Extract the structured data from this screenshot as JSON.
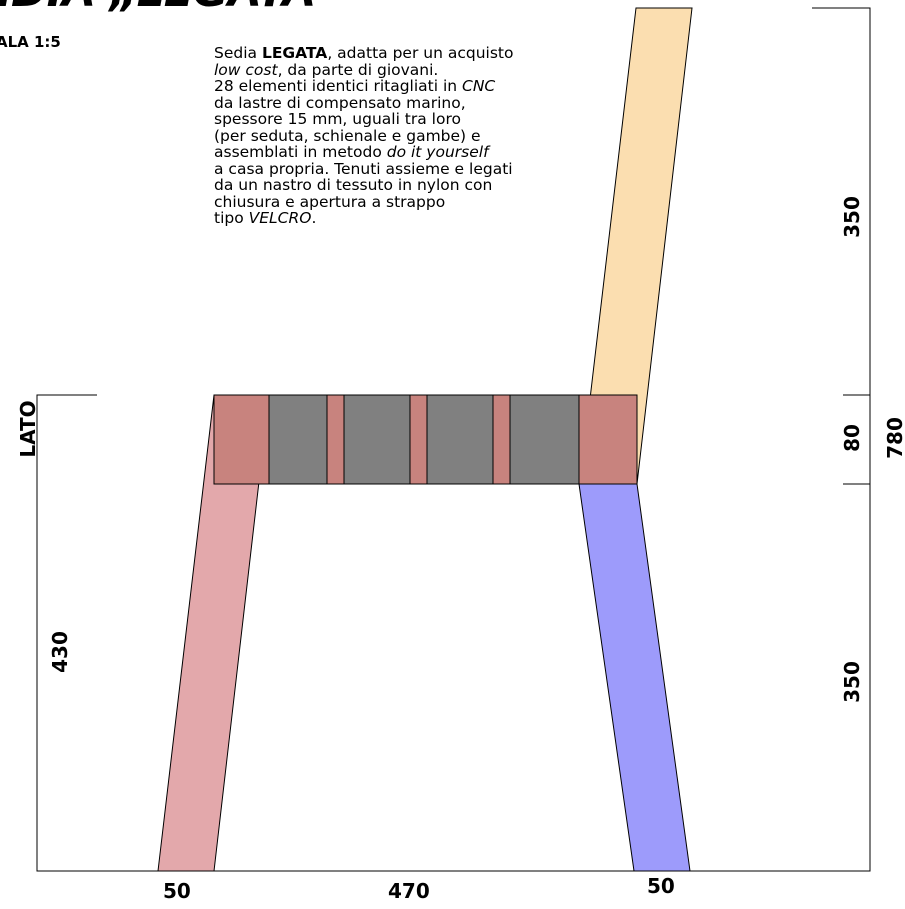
{
  "title": "EDIA „LEGATA",
  "scale": "ALA 1:5",
  "view_label": "LATO",
  "description": {
    "lines": [
      [
        {
          "t": "Sedia "
        },
        {
          "t": "LEGATA",
          "b": true
        },
        {
          "t": ", adatta per un acquisto"
        }
      ],
      [
        {
          "t": "low cost",
          "i": true
        },
        {
          "t": ", da parte di giovani."
        }
      ],
      [
        {
          "t": "28 elementi identici ritagliati in "
        },
        {
          "t": "CNC",
          "i": true
        }
      ],
      [
        {
          "t": "da lastre di compensato marino,"
        }
      ],
      [
        {
          "t": "spessore 15 mm, uguali tra loro"
        }
      ],
      [
        {
          "t": "(per seduta, schienale e gambe) e"
        }
      ],
      [
        {
          "t": "assemblati in metodo "
        },
        {
          "t": "do it yourself",
          "i": true
        }
      ],
      [
        {
          "t": "a casa propria. Tenuti assieme e legati"
        }
      ],
      [
        {
          "t": "da un nastro di tessuto in nylon con"
        }
      ],
      [
        {
          "t": "chiusura e apertura a strappo"
        }
      ],
      [
        {
          "t": "tipo "
        },
        {
          "t": "VELCRO",
          "i": true
        },
        {
          "t": "."
        }
      ]
    ]
  },
  "dimensions": {
    "leg_height": "430",
    "back_height": "350",
    "seat_thickness": "80",
    "total_height": "780",
    "front_leg_height": "350",
    "left_leg_width": "50",
    "seat_width": "470",
    "right_leg_width": "50"
  },
  "colors": {
    "left_leg": "#e3a8ab",
    "right_leg": "#9d9bfb",
    "backrest": "#fbdeb0",
    "seat_dark": "#808080",
    "seat_joint": "#c8837e"
  }
}
